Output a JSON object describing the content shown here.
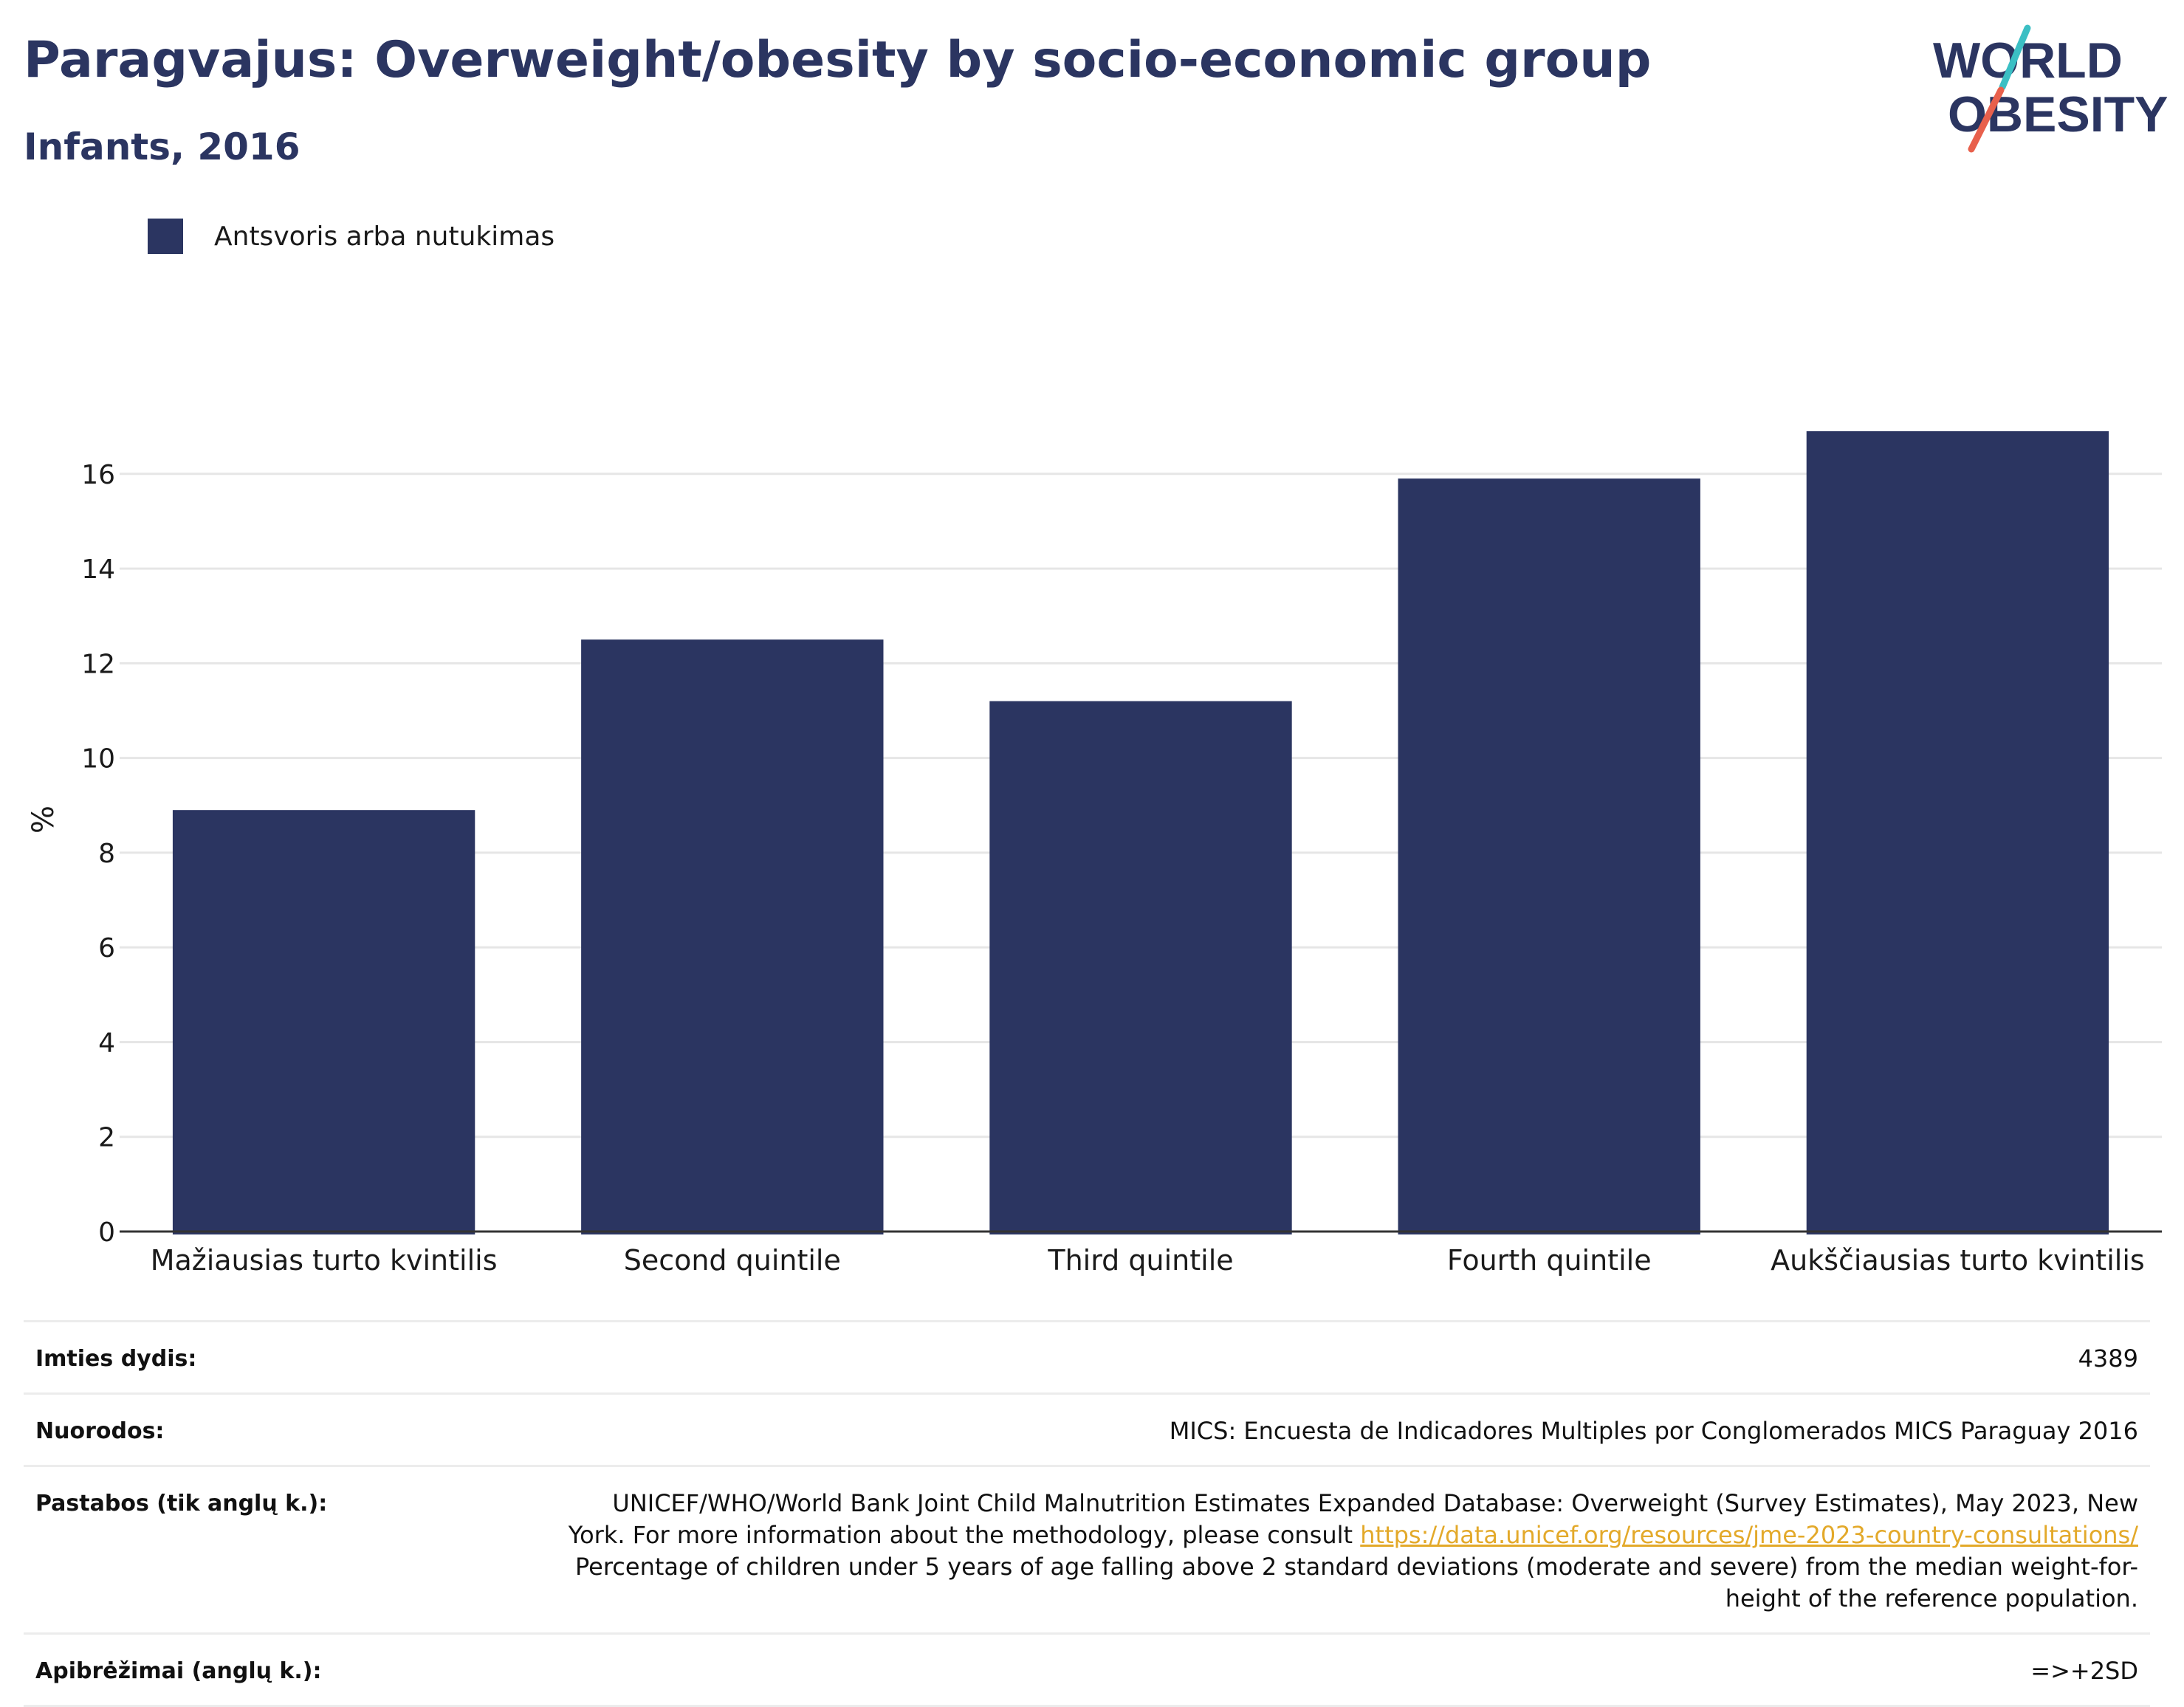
{
  "header": {
    "title": "Paragvajus: Overweight/obesity by socio-economic group",
    "subtitle": "Infants, 2016"
  },
  "logo": {
    "line1": "WORLD",
    "line2": "OBESITY",
    "colors": {
      "text": "#2b3561",
      "slash_top": "#3bbfc4",
      "slash_bottom": "#e8604c"
    }
  },
  "colors": {
    "bar": "#2b3561",
    "grid": "#e6e6e6",
    "axis": "#333333"
  },
  "chart_data": {
    "type": "bar",
    "categories": [
      "Mažiausias turto kvintilis",
      "Second quintile",
      "Third quintile",
      "Fourth quintile",
      "Aukščiausias turto kvintilis"
    ],
    "series": [
      {
        "name": "Antsvoris arba nutukimas",
        "values": [
          8.9,
          12.5,
          11.2,
          15.9,
          16.9
        ]
      }
    ],
    "ylabel": "%",
    "ylim": [
      0,
      17.4
    ],
    "yticks": [
      0,
      2,
      4,
      6,
      8,
      10,
      12,
      14,
      16
    ],
    "grid": true,
    "legend_position": "top-left"
  },
  "meta": {
    "sample_size": {
      "label": "Imties dydis:",
      "value": "4389"
    },
    "references": {
      "label": "Nuorodos:",
      "value": "MICS: Encuesta de Indicadores Multiples por Conglomerados MICS Paraguay 2016"
    },
    "notes": {
      "label": "Pastabos (tik anglų k.):",
      "text_before": "UNICEF/WHO/World Bank Joint Child Malnutrition Estimates Expanded Database: Overweight (Survey Estimates), May 2023, New York. For more information about the methodology, please consult ",
      "link": "https://data.unicef.org/resources/jme-2023-country-consultations/",
      "text_after": " Percentage of children under 5 years of age falling above 2 standard deviations (moderate and severe) from the median weight-for-height of the reference population."
    },
    "definitions": {
      "label": "Apibrėžimai (anglų k.):",
      "value": "=>+2SD"
    }
  }
}
